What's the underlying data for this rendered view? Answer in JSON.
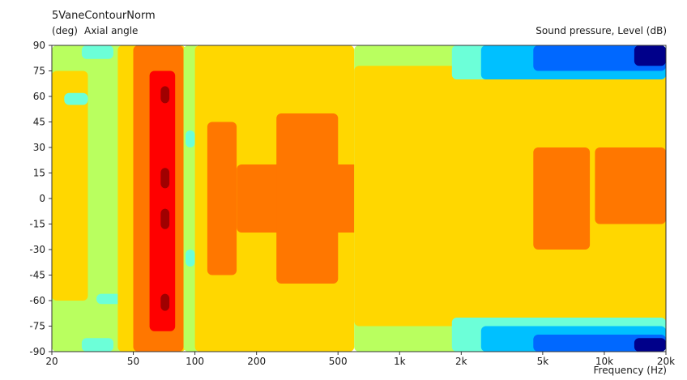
{
  "chart_data": {
    "type": "heatmap",
    "title": "5VaneContourNorm",
    "ylabel_unit": "(deg)",
    "ylabel": "Axial angle",
    "legend_title": "Sound pressure, Level  (dB)",
    "xlabel": "Frequency  (Hz)",
    "xscale": "log",
    "xlim": [
      20,
      20000
    ],
    "ylim": [
      -90,
      90
    ],
    "x_ticks": [
      {
        "label": "20",
        "value": 20
      },
      {
        "label": "50",
        "value": 50
      },
      {
        "label": "100",
        "value": 100
      },
      {
        "label": "200",
        "value": 200
      },
      {
        "label": "500",
        "value": 500
      },
      {
        "label": "1k",
        "value": 1000
      },
      {
        "label": "2k",
        "value": 2000
      },
      {
        "label": "5k",
        "value": 5000
      },
      {
        "label": "10k",
        "value": 10000
      },
      {
        "label": "20k",
        "value": 20000
      }
    ],
    "y_ticks": [
      90,
      75,
      60,
      45,
      30,
      15,
      0,
      -15,
      -30,
      -45,
      -60,
      -75,
      -90
    ],
    "colors": {
      "dark_red": "#a00000",
      "red": "#ff0000",
      "orange": "#ff7700",
      "yellow": "#ffd700",
      "yellow_green": "#b9ff5f",
      "cyan": "#6cffd8",
      "light_blue": "#00c0ff",
      "blue": "#0068ff",
      "deep_blue": "#0018ee",
      "navy": "#00008a"
    },
    "regions": [
      {
        "level": "yellow_green",
        "f": [
          20,
          48
        ],
        "a": [
          -90,
          90
        ]
      },
      {
        "level": "yellow",
        "f": [
          20,
          30
        ],
        "a": [
          -60,
          75
        ]
      },
      {
        "level": "cyan",
        "f": [
          28,
          40
        ],
        "a": [
          -90,
          -82
        ]
      },
      {
        "level": "cyan",
        "f": [
          28,
          40
        ],
        "a": [
          82,
          90
        ]
      },
      {
        "level": "cyan",
        "f": [
          23,
          30
        ],
        "a": [
          55,
          62
        ]
      },
      {
        "level": "cyan",
        "f": [
          33,
          44
        ],
        "a": [
          -62,
          -56
        ]
      },
      {
        "level": "yellow",
        "f": [
          42,
          90
        ],
        "a": [
          -90,
          90
        ]
      },
      {
        "level": "orange",
        "f": [
          50,
          88
        ],
        "a": [
          -90,
          90
        ]
      },
      {
        "level": "red",
        "f": [
          60,
          80
        ],
        "a": [
          -78,
          75
        ]
      },
      {
        "level": "dark_red",
        "f": [
          68,
          75
        ],
        "a": [
          -66,
          -56
        ]
      },
      {
        "level": "dark_red",
        "f": [
          68,
          75
        ],
        "a": [
          -18,
          -6
        ]
      },
      {
        "level": "dark_red",
        "f": [
          68,
          75
        ],
        "a": [
          6,
          18
        ]
      },
      {
        "level": "dark_red",
        "f": [
          68,
          75
        ],
        "a": [
          56,
          66
        ]
      },
      {
        "level": "yellow_green",
        "f": [
          88,
          105
        ],
        "a": [
          -90,
          90
        ]
      },
      {
        "level": "cyan",
        "f": [
          90,
          100
        ],
        "a": [
          -40,
          -30
        ]
      },
      {
        "level": "cyan",
        "f": [
          90,
          100
        ],
        "a": [
          30,
          40
        ]
      },
      {
        "level": "yellow",
        "f": [
          100,
          600
        ],
        "a": [
          -90,
          90
        ]
      },
      {
        "level": "orange",
        "f": [
          115,
          160
        ],
        "a": [
          -45,
          45
        ]
      },
      {
        "level": "orange",
        "f": [
          160,
          3800
        ],
        "a": [
          -20,
          20
        ]
      },
      {
        "level": "orange",
        "f": [
          250,
          500
        ],
        "a": [
          -50,
          50
        ]
      },
      {
        "level": "yellow_green",
        "f": [
          600,
          20000
        ],
        "a": [
          -90,
          90
        ]
      },
      {
        "level": "yellow",
        "f": [
          600,
          20000
        ],
        "a": [
          -75,
          78
        ]
      },
      {
        "level": "orange",
        "f": [
          4500,
          8500
        ],
        "a": [
          -30,
          30
        ]
      },
      {
        "level": "orange",
        "f": [
          9000,
          20000
        ],
        "a": [
          -15,
          30
        ]
      },
      {
        "level": "cyan",
        "f": [
          1800,
          20000
        ],
        "a": [
          70,
          90
        ]
      },
      {
        "level": "cyan",
        "f": [
          1800,
          20000
        ],
        "a": [
          -90,
          -70
        ]
      },
      {
        "level": "light_blue",
        "f": [
          2500,
          20000
        ],
        "a": [
          70,
          90
        ]
      },
      {
        "level": "light_blue",
        "f": [
          2500,
          20000
        ],
        "a": [
          -90,
          -75
        ]
      },
      {
        "level": "blue",
        "f": [
          4500,
          20000
        ],
        "a": [
          75,
          90
        ]
      },
      {
        "level": "blue",
        "f": [
          4500,
          20000
        ],
        "a": [
          -90,
          -80
        ]
      },
      {
        "level": "navy",
        "f": [
          14000,
          20000
        ],
        "a": [
          78,
          90
        ]
      },
      {
        "level": "navy",
        "f": [
          14000,
          20000
        ],
        "a": [
          -90,
          -82
        ]
      }
    ],
    "grid": false
  }
}
